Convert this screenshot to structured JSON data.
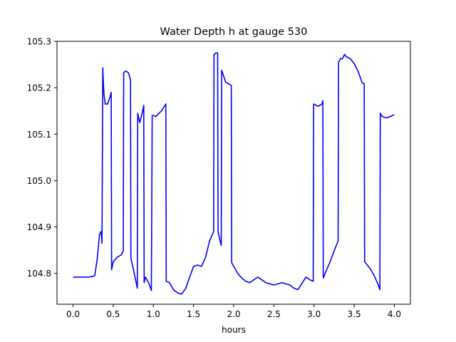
{
  "chart_data": {
    "type": "line",
    "title": "Water Depth h at gauge 530",
    "xlabel": "hours",
    "ylabel": "",
    "xlim": [
      -0.2,
      4.2
    ],
    "ylim": [
      104.7335,
      105.3
    ],
    "xticks": [
      0.0,
      0.5,
      1.0,
      1.5,
      2.0,
      2.5,
      3.0,
      3.5,
      4.0
    ],
    "xtick_labels": [
      "0.0",
      "0.5",
      "1.0",
      "1.5",
      "2.0",
      "2.5",
      "3.0",
      "3.5",
      "4.0"
    ],
    "yticks": [
      104.8,
      104.9,
      105.0,
      105.1,
      105.2,
      105.3
    ],
    "ytick_labels": [
      "104.8",
      "104.9",
      "105.0",
      "105.1",
      "105.2",
      "105.3"
    ],
    "grid": false,
    "series": [
      {
        "color": "#0000ff",
        "x": [
          0.0,
          0.1,
          0.2,
          0.27,
          0.3,
          0.33,
          0.35,
          0.36,
          0.37,
          0.375,
          0.385,
          0.4,
          0.43,
          0.46,
          0.475,
          0.48,
          0.5,
          0.55,
          0.6,
          0.625,
          0.63,
          0.66,
          0.69,
          0.715,
          0.72,
          0.75,
          0.8,
          0.805,
          0.83,
          0.86,
          0.88,
          0.885,
          0.9,
          0.94,
          0.975,
          0.985,
          1.0,
          1.03,
          1.1,
          1.155,
          1.16,
          1.2,
          1.25,
          1.3,
          1.35,
          1.4,
          1.5,
          1.55,
          1.6,
          1.65,
          1.7,
          1.75,
          1.755,
          1.78,
          1.8,
          1.805,
          1.83,
          1.845,
          1.85,
          1.9,
          1.97,
          1.975,
          2.0,
          2.05,
          2.1,
          2.15,
          2.2,
          2.3,
          2.4,
          2.5,
          2.6,
          2.7,
          2.75,
          2.8,
          2.9,
          2.95,
          2.99,
          2.995,
          3.05,
          3.1,
          3.11,
          3.115,
          3.15,
          3.2,
          3.25,
          3.3,
          3.305,
          3.33,
          3.35,
          3.37,
          3.38,
          3.4,
          3.45,
          3.5,
          3.55,
          3.6,
          3.625,
          3.63,
          3.7,
          3.75,
          3.8,
          3.82,
          3.825,
          3.85,
          3.9,
          3.95,
          4.0
        ],
        "y": [
          104.792,
          104.792,
          104.792,
          104.795,
          104.83,
          104.885,
          104.89,
          104.865,
          105.243,
          105.22,
          105.185,
          105.165,
          105.165,
          105.18,
          105.19,
          104.808,
          104.825,
          104.835,
          104.84,
          104.848,
          105.233,
          105.236,
          105.232,
          105.217,
          104.832,
          104.81,
          104.768,
          105.145,
          105.125,
          105.145,
          105.162,
          104.78,
          104.792,
          104.78,
          104.763,
          105.14,
          105.14,
          105.138,
          105.15,
          105.165,
          104.783,
          104.78,
          104.765,
          104.758,
          104.755,
          104.767,
          104.815,
          104.818,
          104.815,
          104.835,
          104.87,
          104.89,
          105.272,
          105.275,
          105.275,
          104.89,
          104.87,
          104.86,
          105.238,
          105.212,
          105.205,
          104.823,
          104.815,
          104.8,
          104.79,
          104.783,
          104.78,
          104.792,
          104.78,
          104.775,
          104.78,
          104.775,
          104.768,
          104.765,
          104.792,
          104.786,
          104.783,
          105.165,
          105.16,
          105.165,
          105.172,
          104.79,
          104.805,
          104.825,
          104.848,
          104.87,
          105.255,
          105.263,
          105.262,
          105.268,
          105.272,
          105.267,
          105.263,
          105.252,
          105.235,
          105.21,
          105.209,
          104.825,
          104.81,
          104.795,
          104.775,
          104.765,
          105.145,
          105.138,
          105.135,
          105.138,
          105.142
        ]
      }
    ]
  }
}
